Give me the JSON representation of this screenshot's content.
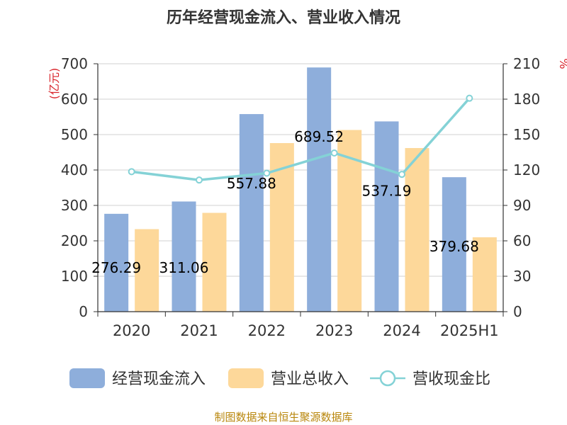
{
  "chart_data": {
    "type": "bar",
    "title": "历年经营现金流入、营业收入情况",
    "categories": [
      "2020",
      "2021",
      "2022",
      "2023",
      "2024",
      "2025H1"
    ],
    "series": [
      {
        "name": "经营现金流入",
        "type": "bar",
        "axis": "left",
        "color": "#8eaedb",
        "values": [
          276.29,
          311.06,
          557.88,
          689.52,
          537.19,
          379.68
        ]
      },
      {
        "name": "营业总收入",
        "type": "bar",
        "axis": "left",
        "color": "#fdd89a",
        "values": [
          233,
          279,
          476,
          513,
          462,
          210
        ]
      },
      {
        "name": "营收现金比",
        "type": "line",
        "axis": "right",
        "color": "#84d2d6",
        "values": [
          118.6,
          111.5,
          117.3,
          134.4,
          116.3,
          180.8
        ]
      }
    ],
    "data_labels": [
      "276.29",
      "311.06",
      "557.88",
      "689.52",
      "537.19",
      "379.68"
    ],
    "y_left": {
      "label": "(亿元)",
      "min": 0,
      "max": 700,
      "ticks": [
        "0",
        "100",
        "200",
        "300",
        "400",
        "500",
        "600",
        "700"
      ]
    },
    "y_right": {
      "label": "%",
      "min": 0,
      "max": 210,
      "ticks": [
        "0",
        "30",
        "60",
        "90",
        "120",
        "150",
        "180",
        "210"
      ]
    },
    "grid": true,
    "legend_position": "bottom"
  },
  "source_text": "制图数据来自恒生聚源数据库"
}
